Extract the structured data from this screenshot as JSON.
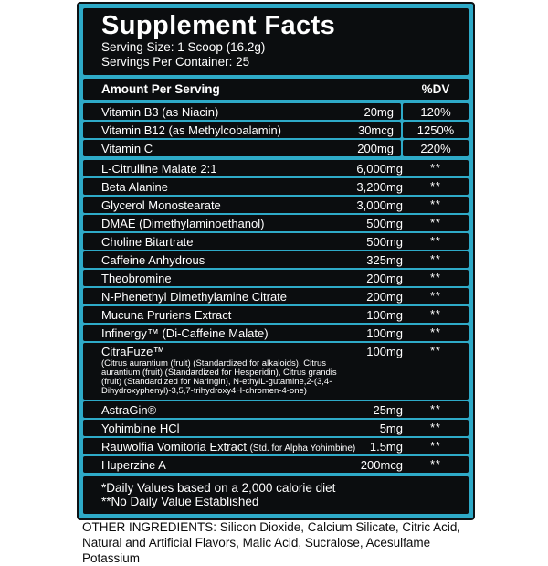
{
  "label": {
    "title": "Supplement Facts",
    "serving_size": "Serving Size: 1 Scoop (16.2g)",
    "servings_per_container": "Servings Per Container: 25",
    "columns": {
      "amount_header": "Amount Per Serving",
      "dv_header": "%DV"
    },
    "vitamins": [
      {
        "name": "Vitamin B3 (as Niacin)",
        "amount": "20mg",
        "dv": "120%"
      },
      {
        "name": "Vitamin B12 (as Methylcobalamin)",
        "amount": "30mcg",
        "dv": "1250%"
      },
      {
        "name": "Vitamin C",
        "amount": "200mg",
        "dv": "220%"
      }
    ],
    "ingredients": [
      {
        "name": "L-Citrulline Malate 2:1",
        "amount": "6,000mg",
        "dv": "**"
      },
      {
        "name": "Beta Alanine",
        "amount": "3,200mg",
        "dv": "**"
      },
      {
        "name": "Glycerol Monostearate",
        "amount": "3,000mg",
        "dv": "**"
      },
      {
        "name": "DMAE (Dimethylaminoethanol)",
        "amount": "500mg",
        "dv": "**"
      },
      {
        "name": "Choline Bitartrate",
        "amount": "500mg",
        "dv": "**"
      },
      {
        "name": "Caffeine Anhydrous",
        "amount": "325mg",
        "dv": "**"
      },
      {
        "name": "Theobromine",
        "amount": "200mg",
        "dv": "**"
      },
      {
        "name": "N-Phenethyl Dimethylamine Citrate",
        "amount": "200mg",
        "dv": "**"
      },
      {
        "name": "Mucuna Pruriens Extract",
        "amount": "100mg",
        "dv": "**"
      },
      {
        "name": "Infinergy™ (Di-Caffeine Malate)",
        "amount": "100mg",
        "dv": "**"
      },
      {
        "name": "CitraFuze™",
        "amount": "100mg",
        "dv": "**",
        "description": "(Citrus aurantium (fruit) (Standardized for alkaloids), Citrus aurantium (fruit) (Standardized for Hesperidin), Citrus grandis (fruit) (Standardized for Naringin), N-ethylL-gutamine,2-(3,4-Dihydroxyphenyl)-3,5,7-trihydroxy4H-chromen-4-one)"
      },
      {
        "name": "AstraGin®",
        "amount": "25mg",
        "dv": "**"
      },
      {
        "name": "Yohimbine HCl",
        "amount": "5mg",
        "dv": "**"
      },
      {
        "name": "Rauwolfia Vomitoria Extract",
        "note": "(Std. for Alpha Yohimbine)",
        "amount": "1.5mg",
        "dv": "**"
      },
      {
        "name": "Huperzine A",
        "amount": "200mcg",
        "dv": "**"
      }
    ],
    "footnotes": {
      "daily_values": "*Daily Values based on a 2,000 calorie diet",
      "no_dv": "**No Daily Value Established"
    },
    "colors": {
      "accent_cyan": "#2EAAC8",
      "panel_black": "#0B0D0F",
      "text_white": "#FFFFFF"
    }
  },
  "other_ingredients": {
    "label": "OTHER INGREDIENTS:",
    "items": " Silicon Dioxide, Calcium Silicate, Citric Acid, Natural and Artificial Flavors, Malic Acid, Sucralose, Acesulfame Potassium"
  }
}
